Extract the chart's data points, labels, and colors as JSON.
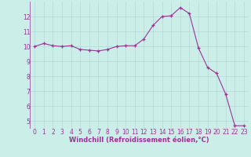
{
  "x": [
    0,
    1,
    2,
    3,
    4,
    5,
    6,
    7,
    8,
    9,
    10,
    11,
    12,
    13,
    14,
    15,
    16,
    17,
    18,
    19,
    20,
    21,
    22,
    23
  ],
  "y": [
    10.0,
    10.2,
    10.05,
    10.0,
    10.05,
    9.8,
    9.75,
    9.7,
    9.8,
    10.0,
    10.05,
    10.05,
    10.5,
    11.4,
    12.0,
    12.05,
    12.6,
    12.2,
    9.9,
    8.6,
    8.2,
    6.8,
    4.7,
    4.7
  ],
  "line_color": "#993399",
  "marker": "+",
  "marker_size": 3,
  "bg_color": "#cceee8",
  "grid_color": "#b8ddd8",
  "xlabel": "Windchill (Refroidissement éolien,°C)",
  "xlabel_fontsize": 6.0,
  "xlabel_color": "#993399",
  "tick_color": "#993399",
  "tick_fontsize": 5.5,
  "ylim": [
    4.5,
    13.0
  ],
  "xlim": [
    -0.5,
    23.5
  ],
  "yticks": [
    5,
    6,
    7,
    8,
    9,
    10,
    11,
    12
  ],
  "xticks": [
    0,
    1,
    2,
    3,
    4,
    5,
    6,
    7,
    8,
    9,
    10,
    11,
    12,
    13,
    14,
    15,
    16,
    17,
    18,
    19,
    20,
    21,
    22,
    23
  ],
  "line_width": 0.8,
  "marker_edge_width": 0.9
}
